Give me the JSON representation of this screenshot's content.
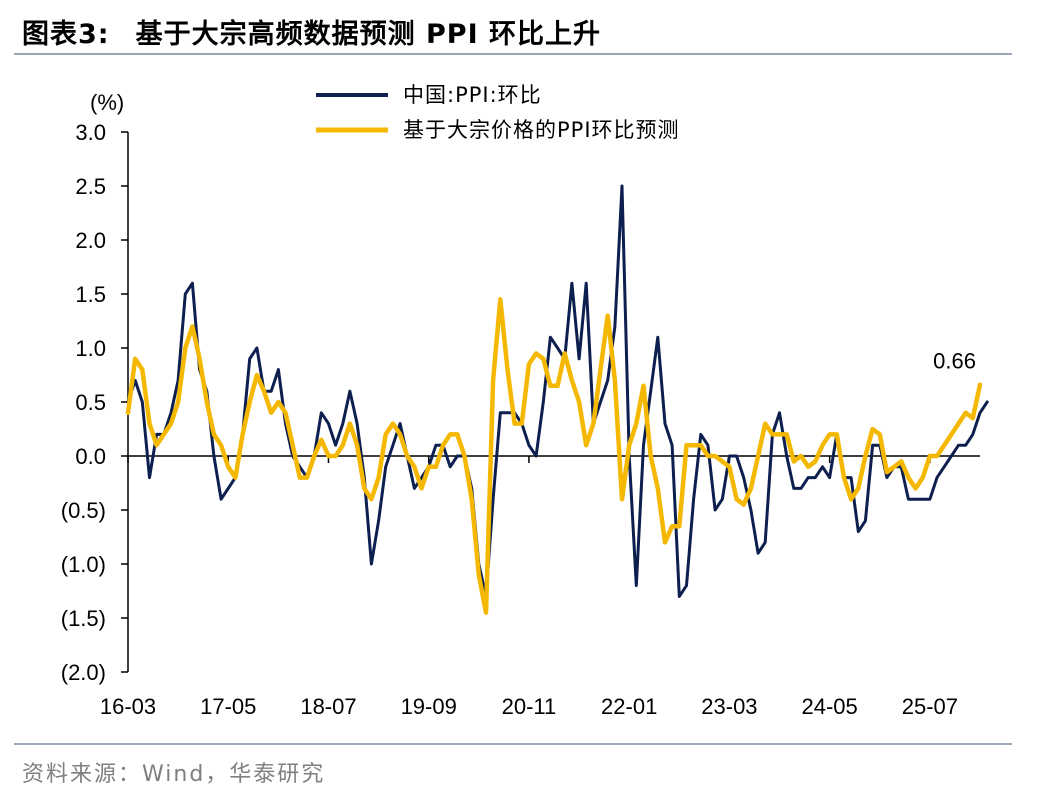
{
  "header": {
    "figure_label": "图表3:",
    "title": "基于大宗高频数据预测 PPI 环比上升"
  },
  "footer": {
    "source": "资料来源：Wind，华泰研究"
  },
  "colors": {
    "actual": "#0d1f4f",
    "forecast": "#f5b800",
    "rule": "#9aa8b9",
    "source_text": "#7f7f7f"
  },
  "chart_data": {
    "type": "line",
    "unit_label": "(%)",
    "xlabel": "",
    "ylabel": "",
    "ylim": [
      -2.0,
      3.0
    ],
    "y_ticks": [
      3.0,
      2.5,
      2.0,
      1.5,
      1.0,
      0.5,
      0.0,
      -0.5,
      -1.0,
      -1.5,
      -2.0
    ],
    "y_tick_labels": [
      "3.0",
      "2.5",
      "2.0",
      "1.5",
      "1.0",
      "0.5",
      "0.0",
      "(0.5)",
      "(1.0)",
      "(1.5)",
      "(2.0)"
    ],
    "x_tick_labels": [
      "16-03",
      "17-05",
      "18-07",
      "19-09",
      "20-11",
      "22-01",
      "23-03",
      "24-05",
      "25-07"
    ],
    "x_tick_months": [
      "2016-03",
      "2017-05",
      "2018-07",
      "2019-09",
      "2020-11",
      "2022-01",
      "2023-03",
      "2024-05",
      "2025-07"
    ],
    "x_range": [
      "2016-03",
      "2026-02"
    ],
    "legend_position": "top-center",
    "annotation": {
      "text": "0.66",
      "month": "2026-02",
      "value": 0.66
    },
    "series": [
      {
        "name": "中国:PPI:环比",
        "start_month": "2016-03",
        "values": [
          0.5,
          0.7,
          0.5,
          -0.2,
          0.2,
          0.2,
          0.4,
          0.7,
          1.5,
          1.6,
          0.8,
          0.6,
          0.0,
          -0.4,
          -0.3,
          -0.2,
          0.2,
          0.9,
          1.0,
          0.6,
          0.6,
          0.8,
          0.3,
          0.0,
          -0.1,
          -0.2,
          0.0,
          0.4,
          0.3,
          0.1,
          0.3,
          0.6,
          0.3,
          -0.2,
          -1.0,
          -0.6,
          -0.1,
          0.1,
          0.3,
          0.0,
          -0.3,
          -0.2,
          -0.1,
          0.1,
          0.1,
          -0.1,
          0.0,
          0.0,
          -0.3,
          -1.0,
          -1.3,
          -0.4,
          0.4,
          0.4,
          0.4,
          0.3,
          0.1,
          0.0,
          0.5,
          1.1,
          1.0,
          0.9,
          1.6,
          0.9,
          1.6,
          0.3,
          0.5,
          0.7,
          1.2,
          2.5,
          0.0,
          -1.2,
          0.1,
          0.6,
          1.1,
          0.3,
          0.1,
          -1.3,
          -1.2,
          -0.4,
          0.2,
          0.1,
          -0.5,
          -0.4,
          0.0,
          0.0,
          -0.2,
          -0.5,
          -0.9,
          -0.8,
          0.2,
          0.4,
          0.0,
          -0.3,
          -0.3,
          -0.2,
          -0.2,
          -0.1,
          -0.2,
          0.2,
          -0.2,
          -0.2,
          -0.7,
          -0.6,
          0.1,
          0.1,
          -0.2,
          -0.1,
          -0.1,
          -0.4,
          -0.4,
          -0.4,
          -0.4,
          -0.2,
          -0.1,
          0.0,
          0.1,
          0.1,
          0.2,
          0.4,
          0.5
        ]
      },
      {
        "name": "基于大宗价格的PPI环比预测",
        "start_month": "2016-03",
        "values": [
          0.4,
          0.9,
          0.8,
          0.3,
          0.1,
          0.2,
          0.3,
          0.5,
          1.0,
          1.2,
          0.9,
          0.5,
          0.2,
          0.1,
          -0.1,
          -0.2,
          0.2,
          0.5,
          0.75,
          0.6,
          0.4,
          0.5,
          0.4,
          0.1,
          -0.2,
          -0.2,
          0.0,
          0.15,
          0.0,
          0.0,
          0.1,
          0.3,
          0.1,
          -0.3,
          -0.4,
          -0.2,
          0.2,
          0.3,
          0.2,
          0.0,
          -0.1,
          -0.3,
          -0.1,
          -0.1,
          0.1,
          0.2,
          0.2,
          0.0,
          -0.4,
          -1.1,
          -1.45,
          0.7,
          1.45,
          0.8,
          0.3,
          0.3,
          0.85,
          0.95,
          0.9,
          0.65,
          0.65,
          0.95,
          0.7,
          0.5,
          0.1,
          0.3,
          0.8,
          1.3,
          0.7,
          -0.4,
          0.1,
          0.3,
          0.65,
          0.0,
          -0.3,
          -0.8,
          -0.65,
          -0.65,
          0.1,
          0.1,
          0.1,
          0.0,
          0.0,
          -0.05,
          -0.1,
          -0.4,
          -0.45,
          -0.3,
          0.0,
          0.3,
          0.2,
          0.2,
          0.2,
          -0.05,
          0.0,
          -0.1,
          -0.05,
          0.1,
          0.2,
          0.2,
          -0.2,
          -0.4,
          -0.3,
          0.0,
          0.25,
          0.2,
          -0.15,
          -0.1,
          -0.05,
          -0.2,
          -0.3,
          -0.2,
          0.0,
          0.0,
          0.1,
          0.2,
          0.3,
          0.4,
          0.35,
          0.66
        ]
      }
    ]
  }
}
